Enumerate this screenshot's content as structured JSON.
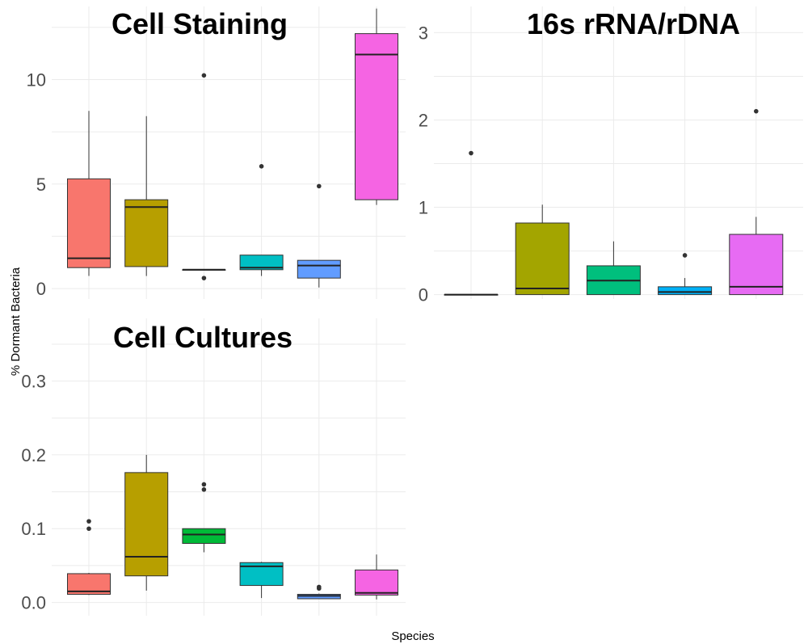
{
  "chart_data": {
    "type": "box",
    "xlabel": "Species",
    "ylabel": "% Dormant Bacteria",
    "grid": true,
    "legend": "none",
    "panels": [
      {
        "title": "Cell Staining",
        "ylim": [
          -0.5,
          13.5
        ],
        "yticks": [
          0,
          5,
          10
        ],
        "boxes": [
          {
            "color": "#F8766D",
            "min": 0.6,
            "q1": 1.0,
            "median": 1.45,
            "q3": 5.25,
            "max": 8.5,
            "outliers": []
          },
          {
            "color": "#B79F00",
            "min": 0.6,
            "q1": 1.05,
            "median": 3.9,
            "q3": 4.25,
            "max": 8.25,
            "outliers": []
          },
          {
            "color": "#00BA38",
            "min": 0.9,
            "q1": 0.9,
            "median": 0.9,
            "q3": 0.9,
            "max": 0.9,
            "outliers": [
              0.5,
              10.2
            ]
          },
          {
            "color": "#00BFC4",
            "min": 0.6,
            "q1": 0.9,
            "median": 1.0,
            "q3": 1.6,
            "max": 1.6,
            "outliers": [
              5.85
            ]
          },
          {
            "color": "#619CFF",
            "min": 0.05,
            "q1": 0.5,
            "median": 1.1,
            "q3": 1.35,
            "max": 1.35,
            "outliers": [
              4.9
            ]
          },
          {
            "color": "#F564E3",
            "min": 4.0,
            "q1": 4.25,
            "median": 11.2,
            "q3": 12.2,
            "max": 13.4,
            "outliers": []
          }
        ]
      },
      {
        "title": "16s rRNA/rDNA",
        "ylim": [
          -0.05,
          3.3
        ],
        "yticks": [
          0,
          1,
          2,
          3
        ],
        "boxes": [
          {
            "color": "#F8766D",
            "min": 0.0,
            "q1": 0.0,
            "median": 0.0,
            "q3": 0.0,
            "max": 0.0,
            "outliers": [
              1.62
            ]
          },
          {
            "color": "#A3A500",
            "min": 0.0,
            "q1": 0.0,
            "median": 0.07,
            "q3": 0.82,
            "max": 1.03,
            "outliers": []
          },
          {
            "color": "#00BF7D",
            "min": 0.0,
            "q1": 0.0,
            "median": 0.16,
            "q3": 0.33,
            "max": 0.61,
            "outliers": []
          },
          {
            "color": "#00B0F6",
            "min": 0.0,
            "q1": 0.0,
            "median": 0.03,
            "q3": 0.09,
            "max": 0.19,
            "outliers": [
              0.45
            ]
          },
          {
            "color": "#E76BF3",
            "min": 0.0,
            "q1": 0.0,
            "median": 0.09,
            "q3": 0.69,
            "max": 0.89,
            "outliers": [
              2.1
            ]
          }
        ]
      },
      {
        "title": "Cell Cultures",
        "ylim": [
          -0.018,
          0.385
        ],
        "yticks": [
          0.0,
          0.1,
          0.2,
          0.3
        ],
        "ytick_labels": [
          "0.0",
          "0.1",
          "0.2",
          "0.3"
        ],
        "boxes": [
          {
            "color": "#F8766D",
            "min": 0.01,
            "q1": 0.011,
            "median": 0.015,
            "q3": 0.039,
            "max": 0.04,
            "outliers": [
              0.1,
              0.11
            ]
          },
          {
            "color": "#B79F00",
            "min": 0.016,
            "q1": 0.036,
            "median": 0.062,
            "q3": 0.176,
            "max": 0.2,
            "outliers": []
          },
          {
            "color": "#00BA38",
            "min": 0.068,
            "q1": 0.08,
            "median": 0.092,
            "q3": 0.1,
            "max": 0.1,
            "outliers": [
              0.153,
              0.16
            ]
          },
          {
            "color": "#00BFC4",
            "min": 0.006,
            "q1": 0.023,
            "median": 0.049,
            "q3": 0.054,
            "max": 0.055,
            "outliers": []
          },
          {
            "color": "#619CFF",
            "min": 0.005,
            "q1": 0.005,
            "median": 0.009,
            "q3": 0.011,
            "max": 0.012,
            "outliers": [
              0.019,
              0.021
            ]
          },
          {
            "color": "#F564E3",
            "min": 0.004,
            "q1": 0.01,
            "median": 0.013,
            "q3": 0.044,
            "max": 0.065,
            "outliers": []
          }
        ]
      }
    ]
  }
}
